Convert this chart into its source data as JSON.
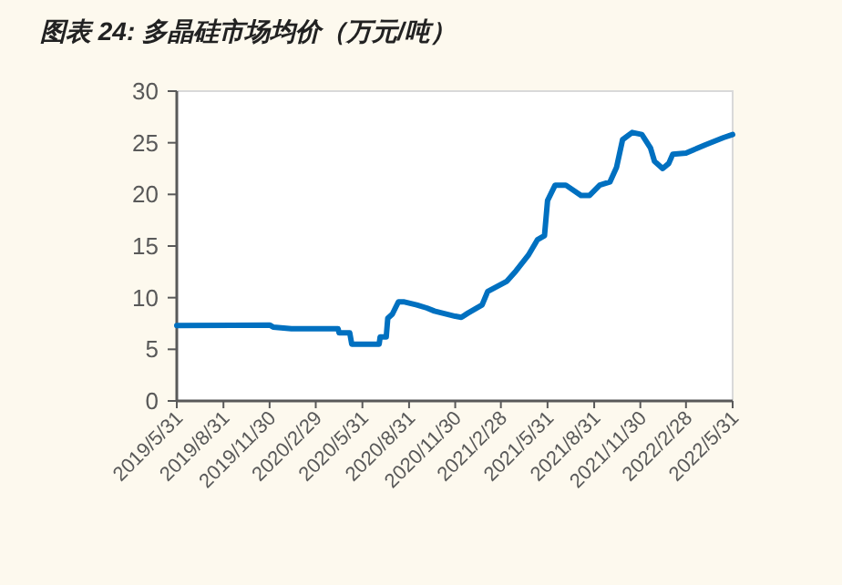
{
  "chart_data": {
    "type": "line",
    "title": "图表 24: 多晶硅市场均价（万元/吨）",
    "color": "#0070c0",
    "x": [
      "2019-05-31",
      "2019-11-30",
      "2019-12-07",
      "2020-01-12",
      "2020-04-13",
      "2020-04-15",
      "2020-05-06",
      "2020-05-10",
      "2020-07-03",
      "2020-07-05",
      "2020-07-17",
      "2020-07-20",
      "2020-07-29",
      "2020-08-10",
      "2020-08-20",
      "2020-09-15",
      "2020-10-05",
      "2020-10-20",
      "2020-11-05",
      "2020-11-30",
      "2020-12-12",
      "2020-12-25",
      "2021-01-22",
      "2021-02-02",
      "2021-03-12",
      "2021-03-30",
      "2021-04-23",
      "2021-05-11",
      "2021-05-25",
      "2021-05-31",
      "2021-06-15",
      "2021-07-06",
      "2021-08-05",
      "2021-08-22",
      "2021-09-11",
      "2021-10-01",
      "2021-10-14",
      "2021-10-26",
      "2021-11-14",
      "2021-12-03",
      "2021-12-20",
      "2021-12-28",
      "2022-01-13",
      "2022-01-25",
      "2022-02-02",
      "2022-02-28",
      "2022-04-07",
      "2022-05-13",
      "2022-05-31"
    ],
    "values": [
      7.3,
      7.35,
      7.15,
      7.0,
      7.0,
      6.6,
      6.6,
      5.5,
      5.5,
      6.2,
      6.2,
      8.0,
      8.4,
      9.6,
      9.6,
      9.3,
      9.0,
      8.7,
      8.5,
      8.2,
      8.1,
      8.5,
      9.3,
      10.6,
      11.6,
      12.6,
      14.1,
      15.6,
      16.0,
      19.4,
      20.9,
      20.9,
      19.9,
      19.9,
      20.9,
      21.2,
      22.6,
      25.3,
      26.0,
      25.8,
      24.5,
      23.2,
      22.5,
      23.0,
      23.9,
      24.0,
      24.8,
      25.5,
      25.8
    ],
    "xlim": [
      "2019-05-31",
      "2022-05-31"
    ],
    "xticks": [
      {
        "value": "2019-05-31",
        "label": "2019/5/31"
      },
      {
        "value": "2019-08-31",
        "label": "2019/8/31"
      },
      {
        "value": "2019-11-30",
        "label": "2019/11/30"
      },
      {
        "value": "2020-02-29",
        "label": "2020/2/29"
      },
      {
        "value": "2020-05-31",
        "label": "2020/5/31"
      },
      {
        "value": "2020-08-31",
        "label": "2020/8/31"
      },
      {
        "value": "2020-11-30",
        "label": "2020/11/30"
      },
      {
        "value": "2021-02-28",
        "label": "2021/2/28"
      },
      {
        "value": "2021-05-31",
        "label": "2021/5/31"
      },
      {
        "value": "2021-08-31",
        "label": "2021/8/31"
      },
      {
        "value": "2021-11-30",
        "label": "2021/11/30"
      },
      {
        "value": "2022-02-28",
        "label": "2022/2/28"
      },
      {
        "value": "2022-05-31",
        "label": "2022/5/31"
      }
    ],
    "ylim": [
      0,
      30
    ],
    "yticks": [
      0,
      5,
      10,
      15,
      20,
      25,
      30
    ]
  }
}
